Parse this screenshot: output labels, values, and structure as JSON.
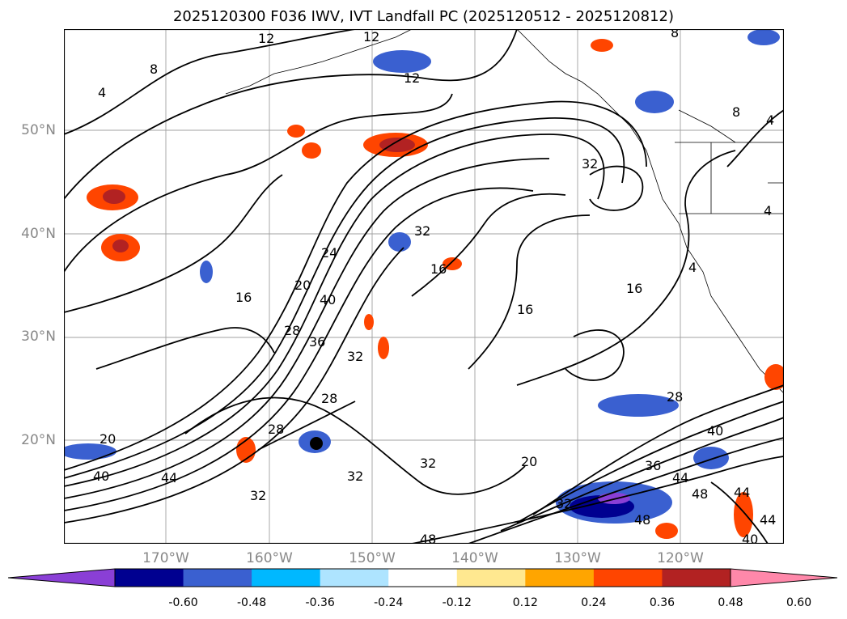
{
  "title": "2025120300 F036 IWV, IVT Landfall PC (2025120512 - 2025120812)",
  "lat_labels": [
    "50°N",
    "40°N",
    "30°N",
    "20°N"
  ],
  "lon_labels": [
    "170°W",
    "160°W",
    "150°W",
    "140°W",
    "130°W",
    "120°W"
  ],
  "colorbar": {
    "ticks": [
      "-0.60",
      "-0.48",
      "-0.36",
      "-0.24",
      "-0.12",
      "0.12",
      "0.24",
      "0.36",
      "0.48",
      "0.60"
    ],
    "colors": [
      "#8a3fd6",
      "#000090",
      "#3a60d0",
      "#00b8ff",
      "#aee4ff",
      "#ffffff",
      "#ffe890",
      "#ffa500",
      "#ff4500",
      "#b22222",
      "#ff88aa"
    ]
  },
  "contour_labels": [
    {
      "text": "12"
    },
    {
      "text": "12"
    },
    {
      "text": "12"
    },
    {
      "text": "8"
    },
    {
      "text": "8"
    },
    {
      "text": "8"
    },
    {
      "text": "4"
    },
    {
      "text": "4"
    },
    {
      "text": "4"
    },
    {
      "text": "32"
    },
    {
      "text": "32"
    },
    {
      "text": "32"
    },
    {
      "text": "32"
    },
    {
      "text": "32"
    },
    {
      "text": "32"
    },
    {
      "text": "24"
    },
    {
      "text": "20"
    },
    {
      "text": "40"
    },
    {
      "text": "28"
    },
    {
      "text": "36"
    },
    {
      "text": "16"
    },
    {
      "text": "16"
    },
    {
      "text": "16"
    },
    {
      "text": "16"
    },
    {
      "text": "28"
    },
    {
      "text": "28"
    },
    {
      "text": "20"
    },
    {
      "text": "20"
    },
    {
      "text": "40"
    },
    {
      "text": "44"
    },
    {
      "text": "36"
    },
    {
      "text": "44"
    },
    {
      "text": "48"
    },
    {
      "text": "48"
    },
    {
      "text": "40"
    },
    {
      "text": "44"
    },
    {
      "text": "48"
    },
    {
      "text": "44"
    },
    {
      "text": "40"
    },
    {
      "text": "28"
    },
    {
      "text": "32"
    },
    {
      "text": "4"
    }
  ]
}
